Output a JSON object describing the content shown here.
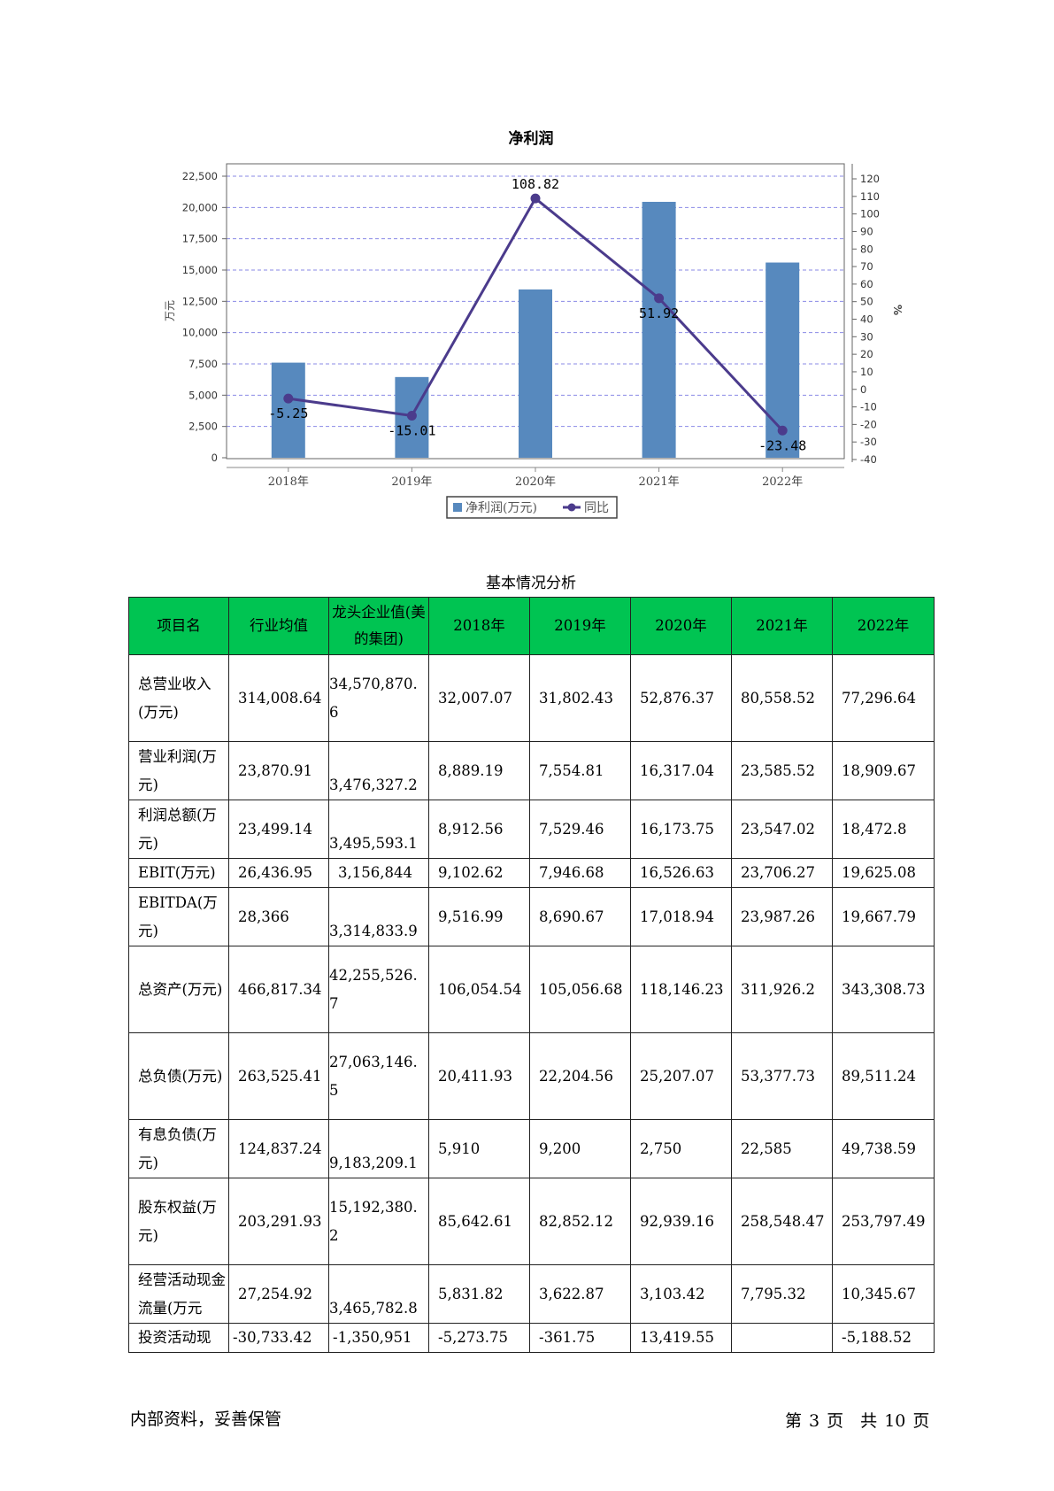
{
  "chart_data": {
    "type": "bar",
    "title": "净利润",
    "categories": [
      "2018年",
      "2019年",
      "2020年",
      "2021年",
      "2022年"
    ],
    "series": [
      {
        "name": "净利润(万元)",
        "type": "bar",
        "axis": "left",
        "values": [
          7600,
          6450,
          13450,
          20450,
          15600
        ]
      },
      {
        "name": "同比",
        "type": "line",
        "axis": "right",
        "values": [
          -5.25,
          -15.01,
          108.82,
          51.92,
          -23.48
        ],
        "labels": [
          "-5.25",
          "-15.01",
          "108.82",
          "51.92",
          "-23.48"
        ]
      }
    ],
    "ylabel": "万元",
    "y2label": "%",
    "ylim": [
      0,
      22500
    ],
    "yticks": [
      "0",
      "2,500",
      "5,000",
      "7,500",
      "10,000",
      "12,500",
      "15,000",
      "17,500",
      "20,000",
      "22,500"
    ],
    "y2lim": [
      -40,
      120
    ],
    "y2ticks": [
      "-40",
      "-30",
      "-20",
      "-10",
      "0",
      "10",
      "20",
      "30",
      "40",
      "50",
      "60",
      "70",
      "80",
      "90",
      "100",
      "110",
      "120"
    ],
    "grid": true,
    "legend": "bottom",
    "colors": {
      "bar": "#5789be",
      "line": "#4b3b8c",
      "grid": "#8a8ae6"
    }
  },
  "table": {
    "title": "基本情况分析",
    "headers": [
      "项目名",
      "行业均值",
      "龙头企业值(美的集团)",
      "2018年",
      "2019年",
      "2020年",
      "2021年",
      "2022年"
    ],
    "rows": [
      [
        "总营业收入(万元)",
        "314,008.64",
        "34,570,870.6",
        "32,007.07",
        "31,802.43",
        "52,876.37",
        "80,558.52",
        "77,296.64"
      ],
      [
        "营业利润(万元)",
        "23,870.91",
        "3,476,327.2",
        "8,889.19",
        "7,554.81",
        "16,317.04",
        "23,585.52",
        "18,909.67"
      ],
      [
        "利润总额(万元)",
        "23,499.14",
        "3,495,593.1",
        "8,912.56",
        "7,529.46",
        "16,173.75",
        "23,547.02",
        "18,472.8"
      ],
      [
        "EBIT(万元)",
        "26,436.95",
        "3,156,844",
        "9,102.62",
        "7,946.68",
        "16,526.63",
        "23,706.27",
        "19,625.08"
      ],
      [
        "EBITDA(万元)",
        "28,366",
        "3,314,833.9",
        "9,516.99",
        "8,690.67",
        "17,018.94",
        "23,987.26",
        "19,667.79"
      ],
      [
        "总资产(万元)",
        "466,817.34",
        "42,255,526.7",
        "106,054.54",
        "105,056.68",
        "118,146.23",
        "311,926.2",
        "343,308.73"
      ],
      [
        "总负债(万元)",
        "263,525.41",
        "27,063,146.5",
        "20,411.93",
        "22,204.56",
        "25,207.07",
        "53,377.73",
        "89,511.24"
      ],
      [
        "有息负债(万元)",
        "124,837.24",
        "9,183,209.1",
        "5,910",
        "9,200",
        "2,750",
        "22,585",
        "49,738.59"
      ],
      [
        "股东权益(万元)",
        "203,291.93",
        "15,192,380.2",
        "85,642.61",
        "82,852.12",
        "92,939.16",
        "258,548.47",
        "253,797.49"
      ],
      [
        "经营活动现金流量(万元",
        "27,254.92",
        "3,465,782.8",
        "5,831.82",
        "3,622.87",
        "3,103.42",
        "7,795.32",
        "10,345.67"
      ],
      [
        "投资活动现",
        "-30,733.42",
        "-1,350,951",
        "-5,273.75",
        "-361.75",
        "13,419.55",
        "",
        "-5,188.52"
      ]
    ]
  },
  "footer": {
    "left": "内部资料，妥善保管",
    "right": "第 3 页　共 10 页"
  }
}
